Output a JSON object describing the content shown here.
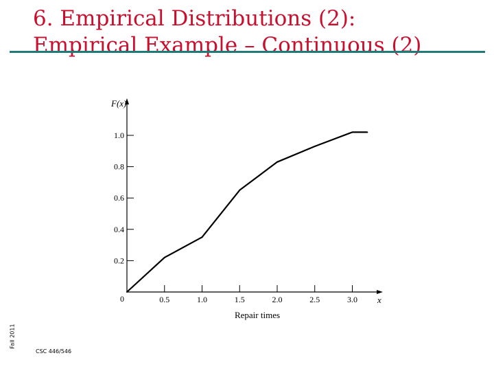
{
  "slide": {
    "title_line1": "6. Empirical Distributions (2):",
    "title_line2": "Empirical Example – Continuous (2)",
    "side_label": "Fall 2011",
    "footer": "CSC 446/546",
    "accent_color": "#c8102e",
    "rule_color": "#1f7a78"
  },
  "chart_data": {
    "type": "line",
    "title": "",
    "xlabel": "Repair times",
    "ylabel": "F(x)",
    "x_axis_symbol": "x",
    "x": [
      0,
      0.5,
      1.0,
      1.5,
      2.0,
      2.5,
      3.0,
      3.2
    ],
    "y": [
      0,
      0.22,
      0.35,
      0.65,
      0.83,
      0.93,
      1.02,
      1.02
    ],
    "xlim": [
      0,
      3.45
    ],
    "ylim": [
      0,
      1.15
    ],
    "x_ticks": [
      0.5,
      1.0,
      1.5,
      2.0,
      2.5,
      3.0
    ],
    "x_tick_labels": [
      "0.5",
      "1.0",
      "1.5",
      "2.0",
      "2.5",
      "3.0"
    ],
    "origin_label": "0",
    "y_ticks": [
      0.2,
      0.4,
      0.6,
      0.8,
      1.0
    ],
    "y_tick_labels": [
      "0.2",
      "0.4",
      "0.6",
      "0.8",
      "1.0"
    ],
    "grid": false,
    "legend": "none"
  }
}
